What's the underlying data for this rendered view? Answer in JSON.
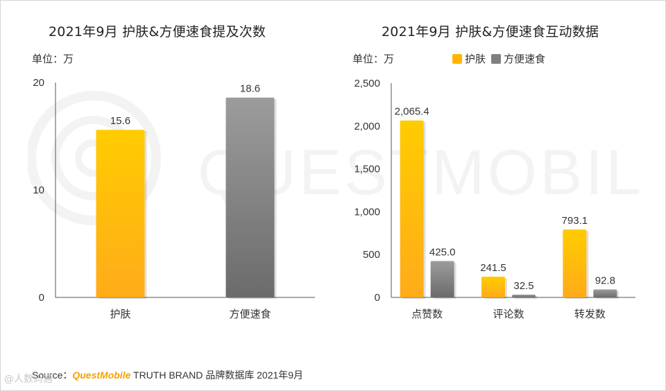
{
  "colors": {
    "series_a": "#ffb400",
    "series_b": "#808080"
  },
  "watermark": {
    "text": "QUESTMOBILE"
  },
  "chart_data": [
    {
      "type": "bar",
      "title": "2021年9月 护肤&方便速食提及次数",
      "unit_label": "单位：万",
      "categories": [
        "护肤",
        "方便速食"
      ],
      "values": [
        15.6,
        18.6
      ],
      "value_labels": [
        "15.6",
        "18.6"
      ],
      "colors": [
        "series_a",
        "series_b"
      ],
      "yticks": [
        "0",
        "10",
        "20"
      ],
      "ylim": [
        0,
        20
      ],
      "grid": false
    },
    {
      "type": "bar",
      "title": "2021年9月 护肤&方便速食互动数据",
      "unit_label": "单位：万",
      "categories": [
        "点赞数",
        "评论数",
        "转发数"
      ],
      "series": [
        {
          "name": "护肤",
          "values": [
            2065.4,
            241.5,
            793.1
          ],
          "value_labels": [
            "2,065.4",
            "241.5",
            "793.1"
          ]
        },
        {
          "name": "方便速食",
          "values": [
            425.0,
            32.5,
            92.8
          ],
          "value_labels": [
            "425.0",
            "32.5",
            "92.8"
          ]
        }
      ],
      "yticks": [
        "0",
        "500",
        "1,000",
        "1,500",
        "2,000",
        "2,500"
      ],
      "ylim": [
        0,
        2500
      ],
      "legend_position": "top",
      "grid": false
    }
  ],
  "footer": {
    "source_prefix": "Source：",
    "source_brand": "QuestMobile",
    "source_rest": " TRUTH BRAND 品牌数据库 2021年9月",
    "corner_text": "@人数码通"
  }
}
